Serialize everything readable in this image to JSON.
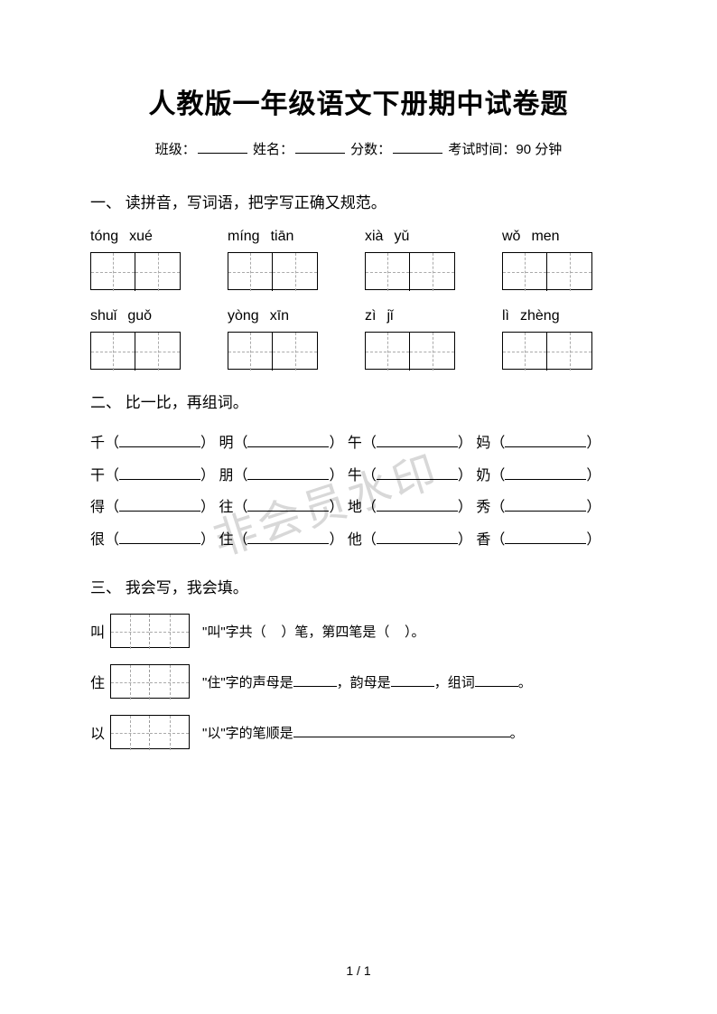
{
  "title": "人教版一年级语文下册期中试卷题",
  "info": {
    "class_label": "班级：",
    "name_label": "姓名：",
    "score_label": "分数：",
    "time_label": "考试时间：",
    "time_value": "90 分钟"
  },
  "watermark": "非会员水印",
  "section1": {
    "heading": "一、 读拼音，写词语，把字写正确又规范。",
    "row1": [
      {
        "p1": "tóng",
        "p2": "xué"
      },
      {
        "p1": "míng",
        "p2": "tiān"
      },
      {
        "p1": "xià",
        "p2": "yǔ"
      },
      {
        "p1": "wǒ",
        "p2": "men"
      }
    ],
    "row2": [
      {
        "p1": "shuǐ",
        "p2": "guǒ"
      },
      {
        "p1": "yòng",
        "p2": "xīn"
      },
      {
        "p1": "zì",
        "p2": "jǐ"
      },
      {
        "p1": "lì",
        "p2": "zhèng"
      }
    ]
  },
  "section2": {
    "heading": "二、 比一比，再组词。",
    "lines": [
      [
        {
          "c": "千"
        },
        {
          "c": "明"
        },
        {
          "c": "午"
        },
        {
          "c": "妈"
        }
      ],
      [
        {
          "c": "干"
        },
        {
          "c": "朋"
        },
        {
          "c": "牛"
        },
        {
          "c": "奶"
        }
      ],
      [
        {
          "c": "得"
        },
        {
          "c": "往"
        },
        {
          "c": "地"
        },
        {
          "c": "秀"
        }
      ],
      [
        {
          "c": "很"
        },
        {
          "c": "住"
        },
        {
          "c": "他"
        },
        {
          "c": "香"
        }
      ]
    ]
  },
  "section3": {
    "heading": "三、 我会写，我会填。",
    "items": [
      {
        "char": "叫",
        "text_pre": "\"叫\"字共（",
        "text_mid": "）笔，第四笔是（",
        "text_post": "）。"
      },
      {
        "char": "住",
        "text_pre": "\"住\"字的声母是",
        "text_mid": "，韵母是",
        "text_mid2": "，组词",
        "text_post": "。"
      },
      {
        "char": "以",
        "text_pre": "\"以\"字的笔顺是",
        "text_post": "。"
      }
    ]
  },
  "page_num": "1 / 1"
}
